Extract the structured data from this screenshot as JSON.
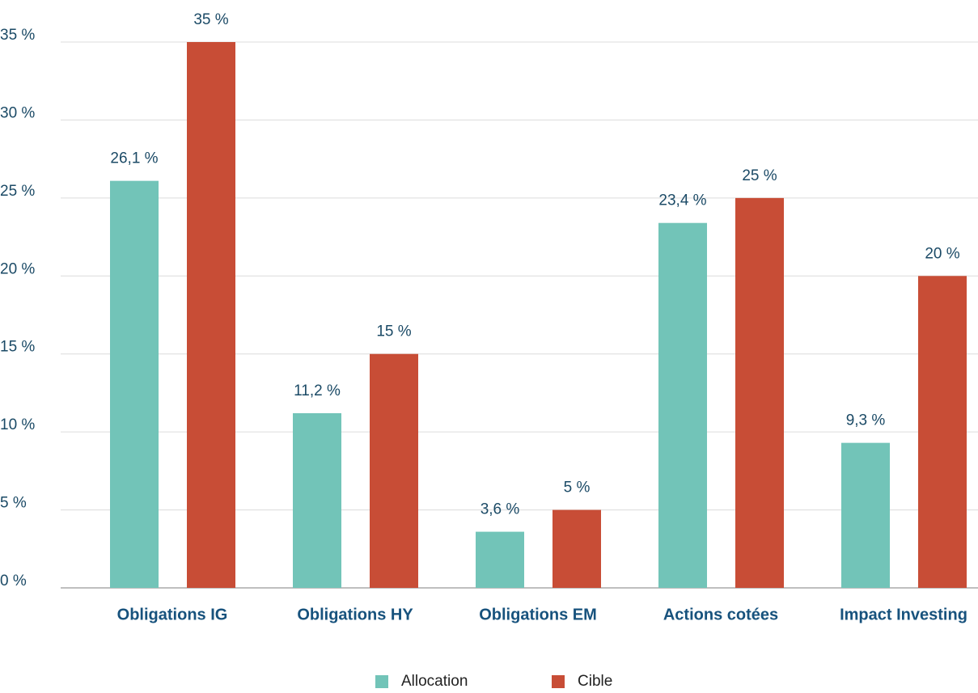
{
  "chart_data": {
    "type": "bar",
    "categories": [
      "Obligations IG",
      "Obligations HY",
      "Obligations EM",
      "Actions cotées",
      "Impact Investing"
    ],
    "series": [
      {
        "name": "Allocation",
        "color": "#72c4b8",
        "values": [
          26.1,
          11.2,
          3.6,
          23.4,
          9.3
        ],
        "value_labels": [
          "26,1 %",
          "11,2 %",
          "3,6 %",
          "23,4 %",
          "9,3 %"
        ]
      },
      {
        "name": "Cible",
        "color": "#c84d36",
        "values": [
          35,
          15,
          5,
          25,
          20
        ],
        "value_labels": [
          "35 %",
          "15 %",
          "5 %",
          "25 %",
          "20 %"
        ]
      }
    ],
    "ylim": [
      0,
      35
    ],
    "yticks": [
      {
        "value": 0,
        "label": "0 %"
      },
      {
        "value": 5,
        "label": "5 %"
      },
      {
        "value": 10,
        "label": "10 %"
      },
      {
        "value": 15,
        "label": "15 %"
      },
      {
        "value": 20,
        "label": "20 %"
      },
      {
        "value": 25,
        "label": "25 %"
      },
      {
        "value": 30,
        "label": "30 %"
      },
      {
        "value": 35,
        "label": "35 %"
      }
    ],
    "grid": true,
    "legend": "bottom"
  }
}
